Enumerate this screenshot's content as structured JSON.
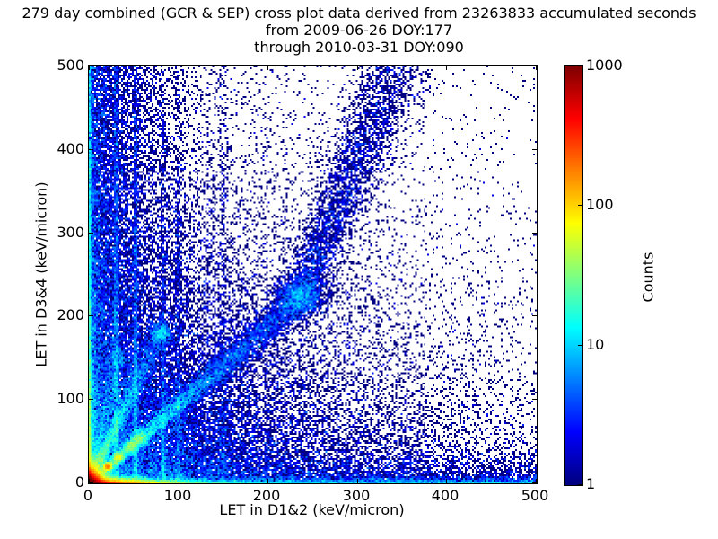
{
  "title": {
    "line1": "279 day combined (GCR & SEP) cross plot data derived from 23263833 accumulated seconds",
    "line2": "from 2009-06-26 DOY:177",
    "line3": "through 2010-03-31 DOY:090"
  },
  "chart_data": {
    "type": "heatmap",
    "title": "279 day combined (GCR & SEP) cross plot data derived from 23263833 accumulated seconds from 2009-06-26 DOY:177 through 2010-03-31 DOY:090",
    "xlabel": "LET in D1&2 (keV/micron)",
    "ylabel": "LET in D3&4 (keV/micron)",
    "xlim": [
      0,
      500
    ],
    "ylim": [
      0,
      500
    ],
    "xticks": [
      0,
      100,
      200,
      300,
      400,
      500
    ],
    "xtick_labels": [
      "0",
      "100",
      "200",
      "300",
      "400",
      "500"
    ],
    "yticks": [
      0,
      100,
      200,
      300,
      400,
      500
    ],
    "ytick_labels": [
      "0",
      "100",
      "200",
      "300",
      "400",
      "500"
    ],
    "grid": false,
    "background": "#ffffff",
    "colormap": "jet",
    "colormap_min_color": "#000080",
    "colormap_max_color": "#800000",
    "colorbar": {
      "label": "Counts",
      "scale": "log",
      "range": [
        1,
        1000
      ],
      "ticks": [
        1,
        10,
        100,
        1000
      ],
      "tick_labels": [
        "1",
        "10",
        "100",
        "1000"
      ]
    },
    "bin_size_units": [
      2,
      2.146
    ],
    "count_to_value": "log10(count)/3",
    "seed": 1234567,
    "features": [
      {
        "name": "origin-hotspot",
        "kind": "blob0",
        "scale": 5.5,
        "count": 26000
      },
      {
        "name": "corner-background",
        "kind": "exp2",
        "xs": 160,
        "ys": 140,
        "count": 30000
      },
      {
        "name": "left-fan",
        "kind": "expx_uniy",
        "xs": 35,
        "count": 11000
      },
      {
        "name": "bottom-fan",
        "kind": "expy_unix",
        "ys": 18,
        "count": 3500
      },
      {
        "name": "bottom-strip",
        "kind": "expy_unix",
        "ys": 3,
        "count": 1500
      },
      {
        "name": "left-axis-column",
        "kind": "col",
        "xs": 2.2,
        "ymix": 0.35,
        "ys": 120,
        "count": 7000
      },
      {
        "name": "bottom-axis-row",
        "kind": "row",
        "ys": 2.2,
        "xmix": 0.12,
        "xs": 34,
        "count": 16000
      },
      {
        "name": "main-diagonal-band",
        "kind": "path",
        "pts": [
          [
            0,
            0
          ],
          [
            235,
            220
          ],
          [
            345,
            500
          ]
        ],
        "s0": 2,
        "s1": 20,
        "tmix": 0.5,
        "tscale": 0.3,
        "count": 12000
      },
      {
        "name": "diagonal-knot-1",
        "kind": "gauss",
        "x": 21,
        "y": 20,
        "sx": 2.5,
        "sy": 2.5,
        "count": 1600
      },
      {
        "name": "diagonal-knot-2",
        "kind": "gauss",
        "x": 33,
        "y": 31,
        "sx": 3,
        "sy": 3,
        "count": 700
      },
      {
        "name": "diagonal-knot-3",
        "kind": "gauss",
        "x": 46,
        "y": 44,
        "sx": 4,
        "sy": 4,
        "count": 600
      },
      {
        "name": "diagonal-knot-4",
        "kind": "gauss",
        "x": 57,
        "y": 53,
        "sx": 5,
        "sy": 5,
        "count": 700
      },
      {
        "name": "diagonal-cluster-mid",
        "kind": "gauss",
        "x": 236,
        "y": 223,
        "sx": 14,
        "sy": 12,
        "count": 1400
      },
      {
        "name": "steep-band-1",
        "kind": "path",
        "pts": [
          [
            0,
            0
          ],
          [
            80,
            180
          ]
        ],
        "s0": 2,
        "s1": 7,
        "tmix": 1,
        "tscale": 0.45,
        "count": 5200
      },
      {
        "name": "steep-band-2",
        "kind": "path",
        "pts": [
          [
            0,
            0
          ],
          [
            34,
            150
          ]
        ],
        "s0": 1.5,
        "s1": 6,
        "tmix": 1,
        "tscale": 0.5,
        "count": 1500
      },
      {
        "name": "vertical-streak-30",
        "kind": "vline",
        "x": 30,
        "sx": 1.5,
        "ys": 200,
        "umix": 0.3,
        "count": 2000
      },
      {
        "name": "vertical-streak-52",
        "kind": "vline",
        "x": 52,
        "sx": 1.6,
        "ys": 180,
        "umix": 0.3,
        "count": 1700
      },
      {
        "name": "vertical-streak-83",
        "kind": "vline",
        "x": 83,
        "sx": 1.7,
        "ys": 140,
        "umix": 0.25,
        "count": 900
      },
      {
        "name": "vertical-streak-100",
        "kind": "vline",
        "x": 100,
        "sx": 2.0,
        "ys": 150,
        "umix": 0.25,
        "count": 800
      },
      {
        "name": "vertical-streak-150",
        "kind": "vline",
        "x": 150,
        "sx": 2.5,
        "ys": 150,
        "umix": 0.3,
        "count": 500
      },
      {
        "name": "sparse-uniform",
        "kind": "uniform",
        "count": 700
      }
    ]
  }
}
